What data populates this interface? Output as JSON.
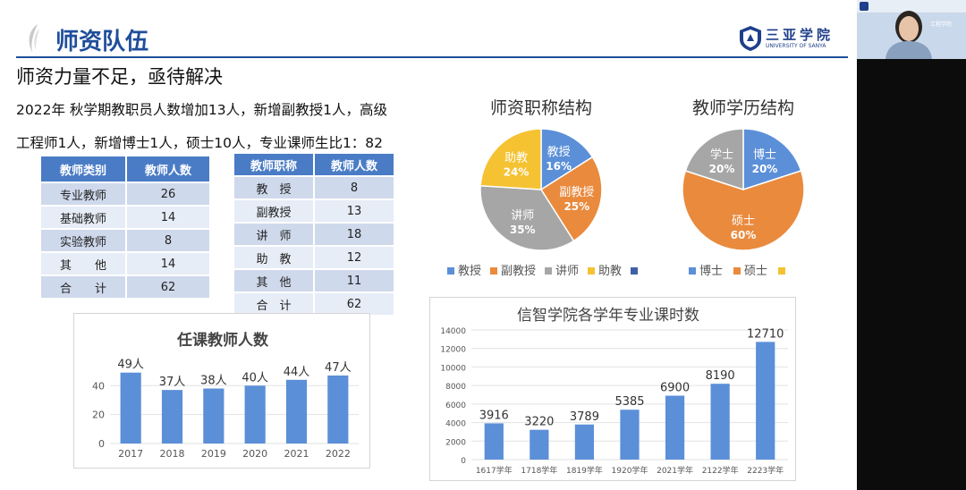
{
  "header": {
    "title": "师资队伍"
  },
  "school": {
    "name": "三亚学院",
    "en": "UNIVERSITY OF SANYA"
  },
  "subtitle": "师资力量不足，亟待解决",
  "paragraph": [
    "2022年 秋学期教职员人数增加13人，新增副教授1人，高级",
    "工程师1人，新增博士1人，硕士10人，专业课师生比1：82"
  ],
  "table1": {
    "headers": [
      "教师类别",
      "教师人数"
    ],
    "rows": [
      [
        "专业教师",
        "26"
      ],
      [
        "基础教师",
        "14"
      ],
      [
        "实验教师",
        "8"
      ],
      [
        "其　　他",
        "14"
      ],
      [
        "合　　计",
        "62"
      ]
    ]
  },
  "table2": {
    "headers": [
      "教师职称",
      "教师人数"
    ],
    "rows": [
      [
        "教　授",
        "8"
      ],
      [
        "副教授",
        "13"
      ],
      [
        "讲　师",
        "18"
      ],
      [
        "助　教",
        "12"
      ],
      [
        "其　他",
        "11"
      ],
      [
        "合　计",
        "62"
      ]
    ]
  },
  "video": {
    "org": "工程学院"
  },
  "colors": {
    "blue": "#5b8fd8",
    "orange": "#e98a3d",
    "gray": "#a6a6a6",
    "yellow": "#f5c232",
    "navy": "#3f5fa8",
    "accent": "#1f4e9a"
  },
  "chart_data": [
    {
      "type": "pie",
      "title": "师资职称结构",
      "slices": [
        {
          "label": "教授",
          "pct": "16%",
          "value": 16,
          "color": "#5b8fd8"
        },
        {
          "label": "副教授",
          "pct": "25%",
          "value": 25,
          "color": "#e98a3d"
        },
        {
          "label": "讲师",
          "pct": "35%",
          "value": 35,
          "color": "#a6a6a6"
        },
        {
          "label": "助教",
          "pct": "24%",
          "value": 24,
          "color": "#f5c232"
        }
      ],
      "legend": [
        "教授",
        "副教授",
        "讲师",
        "助教",
        ""
      ],
      "legend_colors": [
        "#5b8fd8",
        "#e98a3d",
        "#a6a6a6",
        "#f5c232",
        "#3f5fa8"
      ],
      "legend_position": "bottom"
    },
    {
      "type": "pie",
      "title": "教师学历结构",
      "slices": [
        {
          "label": "博士",
          "pct": "20%",
          "value": 20,
          "color": "#5b8fd8"
        },
        {
          "label": "硕士",
          "pct": "60%",
          "value": 60,
          "color": "#e98a3d"
        },
        {
          "label": "学士",
          "pct": "20%",
          "value": 20,
          "color": "#a6a6a6"
        }
      ],
      "legend": [
        "博士",
        "硕士",
        ""
      ],
      "legend_colors": [
        "#5b8fd8",
        "#e98a3d",
        "#f5c232"
      ],
      "legend_position": "bottom"
    },
    {
      "type": "bar",
      "title": "任课教师人数",
      "categories": [
        "2017",
        "2018",
        "2019",
        "2020",
        "2021",
        "2022"
      ],
      "values": [
        49,
        37,
        38,
        40,
        44,
        47
      ],
      "labels": [
        "49人",
        "37人",
        "38人",
        "40人",
        "44人",
        "47人"
      ],
      "yticks": [
        0,
        20,
        40
      ],
      "ylim": [
        0,
        55
      ],
      "grid": true
    },
    {
      "type": "bar",
      "title": "信智学院各学年专业课时数",
      "categories": [
        "1617学年",
        "1718学年",
        "1819学年",
        "1920学年",
        "2021学年",
        "2122学年",
        "2223学年"
      ],
      "values": [
        3916,
        3220,
        3789,
        5385,
        6900,
        8190,
        12710
      ],
      "yticks": [
        0,
        2000,
        4000,
        6000,
        8000,
        10000,
        12000,
        14000
      ],
      "ylim": [
        0,
        14000
      ],
      "grid": true
    }
  ]
}
